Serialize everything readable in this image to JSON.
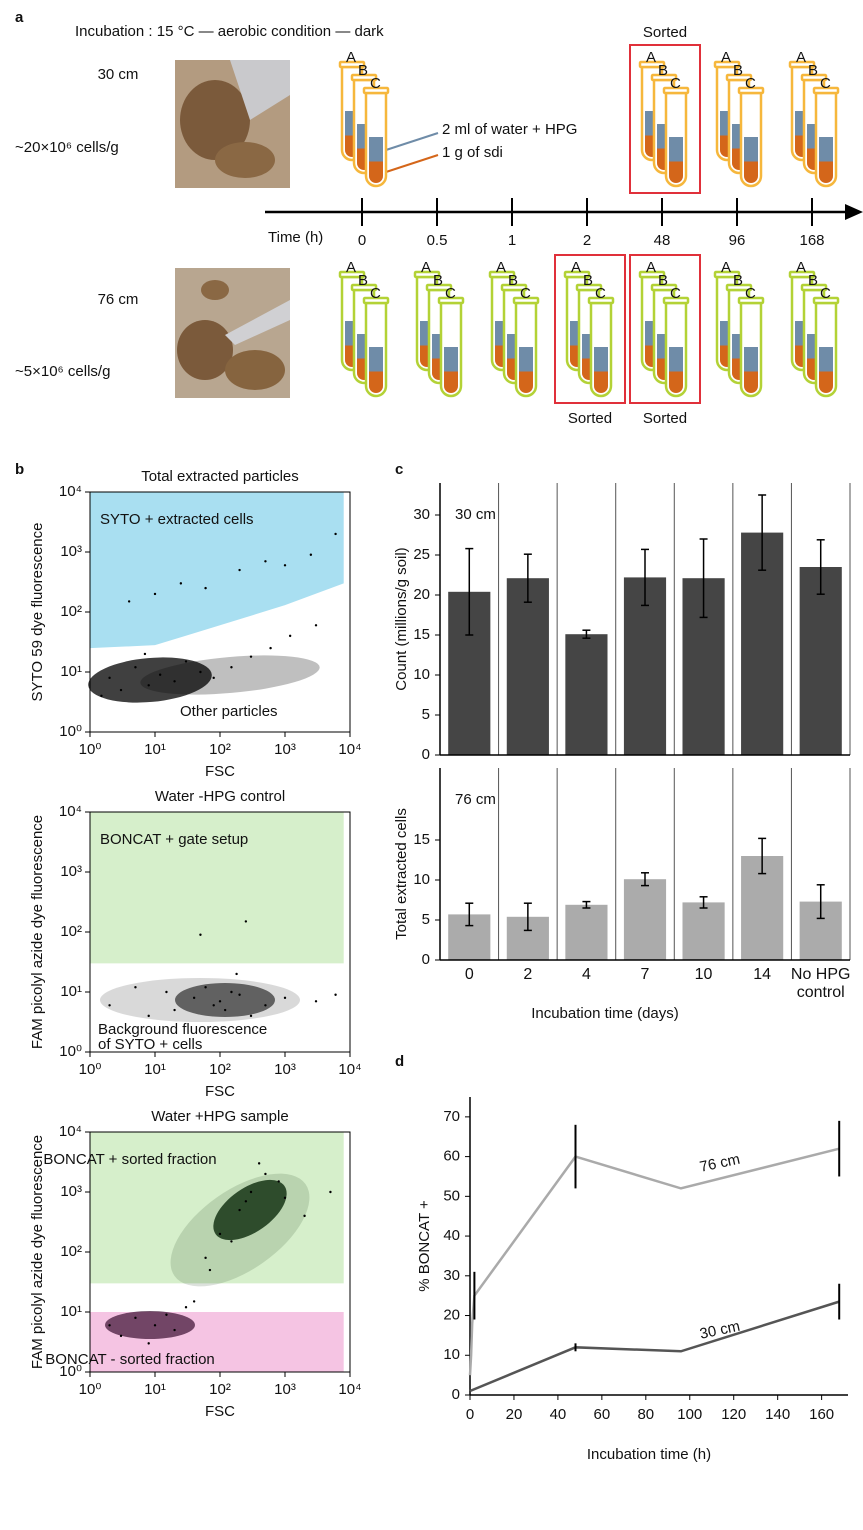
{
  "panel_labels": [
    "a",
    "b",
    "c",
    "d"
  ],
  "panel_a": {
    "title": "Incubation : 15 °C — aerobic condition — dark",
    "time_label": "Time (h)",
    "times": [
      0,
      0.5,
      1,
      2,
      48,
      96,
      168
    ],
    "tube_labels": [
      "A",
      "B",
      "C"
    ],
    "sorted_label": "Sorted",
    "legend": [
      {
        "text": "2 ml of water + HPG",
        "color": "#6f8ca8"
      },
      {
        "text": "1 g of sdi",
        "color": "#d4661a"
      }
    ],
    "depths": [
      {
        "label": "30 cm",
        "cells": "~20×10⁶ cells/g",
        "color": "#f6b73c",
        "sampled": [
          0,
          48,
          96,
          168
        ],
        "sorted": [
          48
        ]
      },
      {
        "label": "76 cm",
        "cells": "~5×10⁶ cells/g",
        "color": "#b3d236",
        "sampled": [
          0,
          0.5,
          1,
          2,
          48,
          96,
          168
        ],
        "sorted": [
          2,
          48
        ]
      }
    ]
  },
  "chart_data": [
    {
      "type": "scatter",
      "title": "Total extracted particles",
      "xlabel": "FSC",
      "ylabel": "SYTO 59 dye fluorescence",
      "log_x": true,
      "log_y": true,
      "xlim": [
        1,
        10000
      ],
      "ylim": [
        1,
        10000
      ],
      "xticks": [
        {
          "value": 1,
          "label": "10⁰"
        },
        {
          "value": 10,
          "label": "10¹"
        },
        {
          "value": 100,
          "label": "10²"
        },
        {
          "value": 1000,
          "label": "10³"
        },
        {
          "value": 10000,
          "label": "10⁴"
        }
      ],
      "yticks": [
        {
          "value": 1,
          "label": "10⁰"
        },
        {
          "value": 10,
          "label": "10¹"
        },
        {
          "value": 100,
          "label": "10²"
        },
        {
          "value": 1000,
          "label": "10³"
        },
        {
          "value": 10000,
          "label": "10⁴"
        }
      ],
      "color": "#000000",
      "regions": [
        {
          "label": "SYTO + extracted cells",
          "color": "#a9dff1",
          "points": [
            [
              1,
              25
            ],
            [
              10,
              28
            ],
            [
              100,
              60
            ],
            [
              1000,
              130
            ],
            [
              8000,
              300
            ],
            [
              8000,
              10000
            ],
            [
              1,
              10000
            ]
          ]
        }
      ],
      "annotations": [
        "Other particles"
      ],
      "x": [
        2,
        3,
        5,
        8,
        12,
        20,
        30,
        50,
        80,
        150,
        300,
        600,
        1200,
        3000,
        4,
        10,
        25,
        60,
        200,
        500,
        1000,
        2500,
        6000,
        1.5,
        7
      ],
      "values": [
        8,
        5,
        12,
        6,
        9,
        7,
        15,
        10,
        8,
        12,
        18,
        25,
        40,
        60,
        150,
        200,
        300,
        250,
        500,
        700,
        600,
        900,
        2000,
        4,
        20
      ]
    },
    {
      "type": "scatter",
      "title": "Water -HPG control",
      "xlabel": "FSC",
      "ylabel": "FAM picolyl azide dye fluorescence",
      "log_x": true,
      "log_y": true,
      "xlim": [
        1,
        10000
      ],
      "ylim": [
        1,
        10000
      ],
      "xticks": [
        {
          "value": 1,
          "label": "10⁰"
        },
        {
          "value": 10,
          "label": "10¹"
        },
        {
          "value": 100,
          "label": "10²"
        },
        {
          "value": 1000,
          "label": "10³"
        },
        {
          "value": 10000,
          "label": "10⁴"
        }
      ],
      "yticks": [
        {
          "value": 1,
          "label": "10⁰"
        },
        {
          "value": 10,
          "label": "10¹"
        },
        {
          "value": 100,
          "label": "10²"
        },
        {
          "value": 1000,
          "label": "10³"
        },
        {
          "value": 10000,
          "label": "10⁴"
        }
      ],
      "color": "#000000",
      "regions": [
        {
          "label": "BONCAT + gate setup",
          "color": "#d6efcb",
          "points": [
            [
              1,
              30
            ],
            [
              8000,
              30
            ],
            [
              8000,
              10000
            ],
            [
              1,
              10000
            ]
          ]
        }
      ],
      "annotations": [
        "Background fluorescence",
        "of SYTO + cells"
      ],
      "x": [
        20,
        40,
        80,
        150,
        300,
        60,
        100,
        200,
        500,
        1000,
        3000,
        8,
        15,
        2,
        5,
        250,
        120,
        50,
        180,
        6000
      ],
      "values": [
        5,
        8,
        6,
        10,
        4,
        12,
        7,
        9,
        6,
        8,
        7,
        4,
        10,
        6,
        12,
        150,
        5,
        90,
        20,
        9
      ]
    },
    {
      "type": "scatter",
      "title": "Water +HPG sample",
      "xlabel": "FSC",
      "ylabel": "FAM picolyl azide dye fluorescence",
      "log_x": true,
      "log_y": true,
      "xlim": [
        1,
        10000
      ],
      "ylim": [
        1,
        10000
      ],
      "xticks": [
        {
          "value": 1,
          "label": "10⁰"
        },
        {
          "value": 10,
          "label": "10¹"
        },
        {
          "value": 100,
          "label": "10²"
        },
        {
          "value": 1000,
          "label": "10³"
        },
        {
          "value": 10000,
          "label": "10⁴"
        }
      ],
      "yticks": [
        {
          "value": 1,
          "label": "10⁰"
        },
        {
          "value": 10,
          "label": "10¹"
        },
        {
          "value": 100,
          "label": "10²"
        },
        {
          "value": 1000,
          "label": "10³"
        },
        {
          "value": 10000,
          "label": "10⁴"
        }
      ],
      "color": "#000000",
      "regions": [
        {
          "label": "BONCAT + sorted fraction",
          "color": "#d6efcb",
          "points": [
            [
              1,
              30
            ],
            [
              8000,
              30
            ],
            [
              8000,
              10000
            ],
            [
              1,
              10000
            ]
          ]
        },
        {
          "label": "BONCAT - sorted fraction",
          "color": "#f5c4e3",
          "points": [
            [
              1,
              1
            ],
            [
              8000,
              1
            ],
            [
              8000,
              10
            ],
            [
              1,
              10
            ]
          ]
        }
      ],
      "annotations": [],
      "x": [
        100,
        200,
        300,
        500,
        800,
        150,
        250,
        400,
        1000,
        2000,
        60,
        5000,
        10,
        20,
        5,
        3,
        15,
        30,
        8,
        40,
        2,
        70
      ],
      "values": [
        200,
        500,
        1000,
        2000,
        1500,
        150,
        700,
        3000,
        800,
        400,
        80,
        1000,
        6,
        5,
        8,
        4,
        9,
        12,
        3,
        15,
        6,
        50
      ]
    },
    {
      "type": "bar",
      "ylabel": "Count (millions/g soil)",
      "annotation": "30 cm",
      "color": "#454545",
      "values": [
        20.4,
        22.1,
        15.1,
        22.2,
        22.1,
        27.8,
        23.5
      ],
      "errors": [
        5.4,
        3,
        0.5,
        3.5,
        4.9,
        4.7,
        3.4
      ],
      "ylim": [
        0,
        34
      ],
      "yticks": [
        0,
        5,
        10,
        15,
        20,
        25,
        30
      ]
    },
    {
      "type": "bar",
      "ylabel": "Total extracted cells",
      "xlabel": "Incubation time (days)",
      "annotation": "76 cm",
      "color": "#ababab",
      "categories": [
        "0",
        "2",
        "4",
        "7",
        "10",
        "14",
        "No HPG control"
      ],
      "values": [
        5.7,
        5.4,
        6.9,
        10.1,
        7.2,
        13,
        7.3
      ],
      "errors": [
        1.4,
        1.7,
        0.4,
        0.8,
        0.7,
        2.2,
        2.1
      ],
      "ylim": [
        0,
        24
      ],
      "yticks": [
        0,
        5,
        10,
        15
      ]
    },
    {
      "type": "line",
      "xlabel": "Incubation time (h)",
      "ylabel": "% BONCAT +",
      "xlim": [
        0,
        172
      ],
      "ylim": [
        0,
        75
      ],
      "xticks": [
        0,
        20,
        40,
        60,
        80,
        100,
        120,
        140,
        160
      ],
      "yticks": [
        0,
        10,
        20,
        30,
        40,
        50,
        60,
        70
      ],
      "series": [
        {
          "name": "30 cm",
          "color": "#555555",
          "x": [
            0,
            48,
            96,
            168
          ],
          "values": [
            1,
            12,
            11,
            23.5
          ],
          "errors": [
            null,
            1,
            null,
            4.5
          ]
        },
        {
          "name": "76 cm",
          "color": "#aaaaaa",
          "x": [
            0,
            0.5,
            1,
            2,
            48,
            96,
            168
          ],
          "values": [
            5,
            10,
            18,
            25,
            60,
            52,
            62
          ],
          "errors": [
            null,
            null,
            null,
            6,
            8,
            null,
            7
          ]
        }
      ]
    }
  ]
}
